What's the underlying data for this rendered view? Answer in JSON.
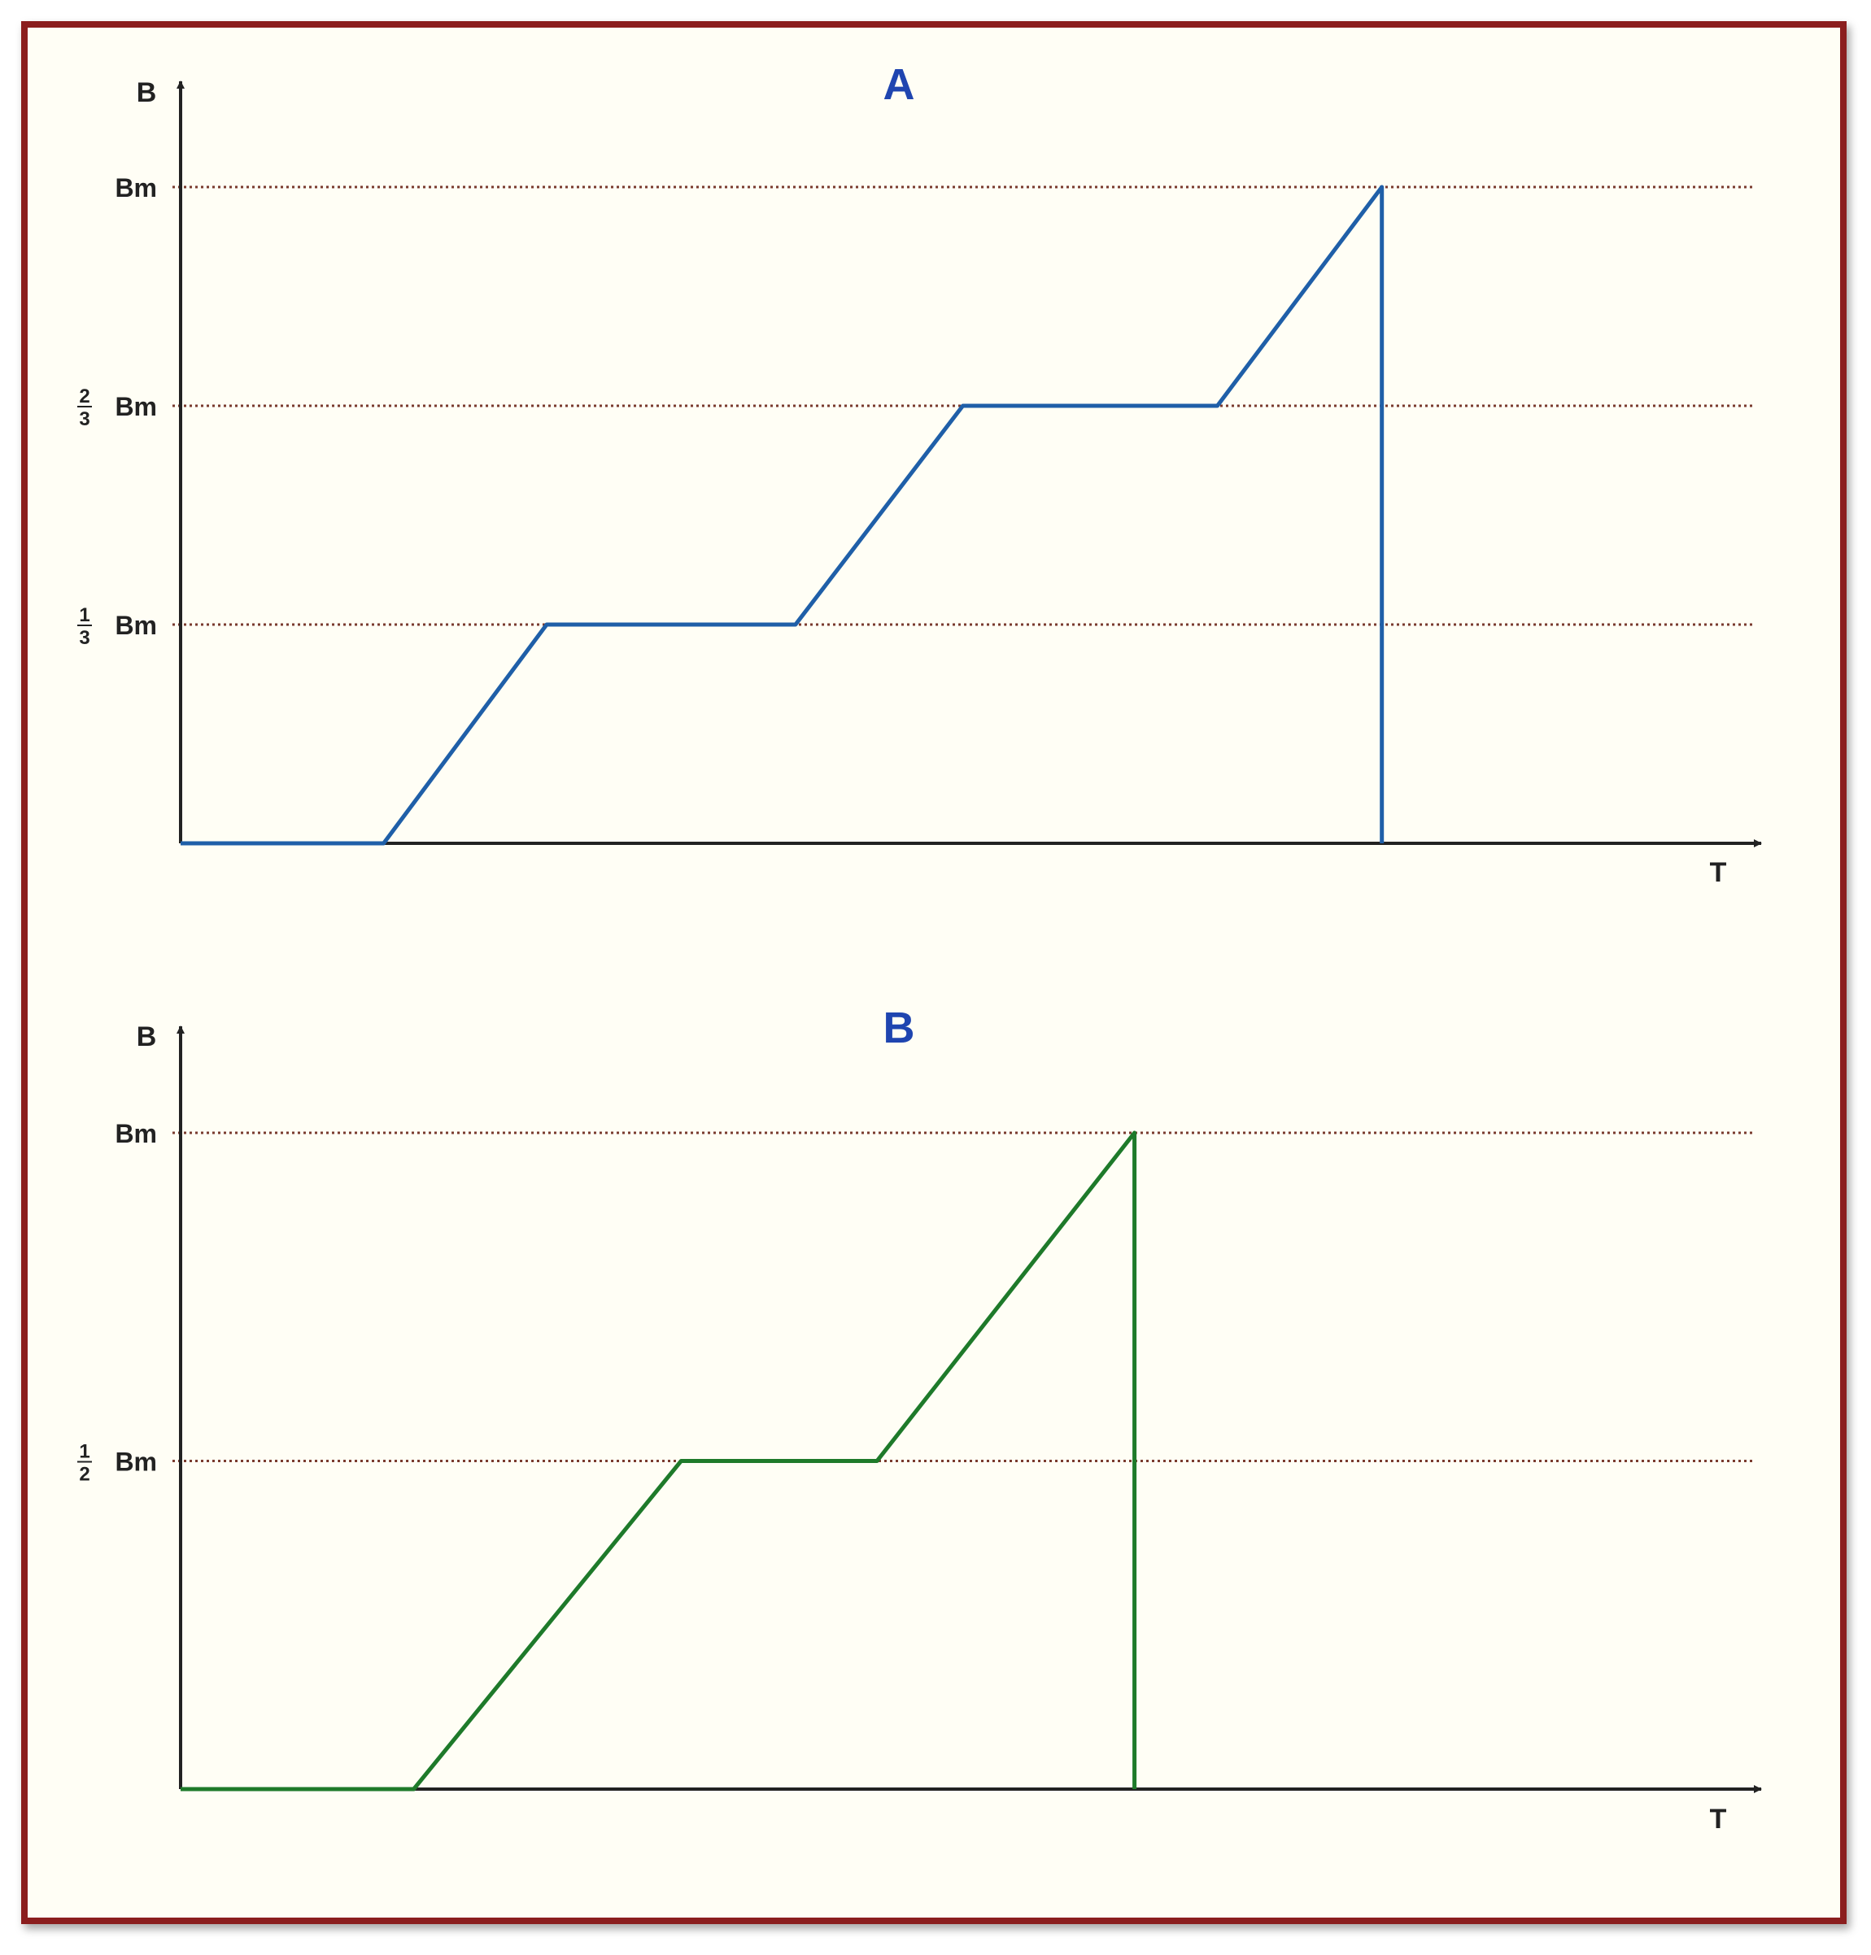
{
  "chart_data": [
    {
      "type": "line",
      "title": "A",
      "ylabel": "B",
      "xlabel": "T",
      "line_color": "#1f5fa8",
      "title_color": "#1f45b0",
      "ref_lines": [
        {
          "value": 1.0,
          "label": "Bm"
        },
        {
          "value": 0.6667,
          "num": "2",
          "den": "3",
          "label": "Bm"
        },
        {
          "value": 0.3333,
          "num": "1",
          "den": "3",
          "label": "Bm"
        }
      ],
      "series": [
        {
          "x": [
            0,
            0.142,
            0.256,
            0.43,
            0.547,
            0.725,
            0.84,
            0.84
          ],
          "y": [
            0,
            0,
            0.3333,
            0.3333,
            0.6667,
            0.6667,
            1.0,
            0
          ]
        }
      ],
      "xlim": [
        0,
        1
      ],
      "ylim": [
        0,
        1
      ]
    },
    {
      "type": "line",
      "title": "B",
      "ylabel": "B",
      "xlabel": "T",
      "line_color": "#1e7a2a",
      "title_color": "#1f45b0",
      "ref_lines": [
        {
          "value": 1.0,
          "label": "Bm"
        },
        {
          "value": 0.5,
          "num": "1",
          "den": "2",
          "label": "Bm"
        }
      ],
      "series": [
        {
          "x": [
            0,
            0.163,
            0.35,
            0.487,
            0.667,
            0.667
          ],
          "y": [
            0,
            0,
            0.5,
            0.5,
            1.0,
            0
          ]
        }
      ],
      "xlim": [
        0,
        1
      ],
      "ylim": [
        0,
        1
      ]
    }
  ]
}
